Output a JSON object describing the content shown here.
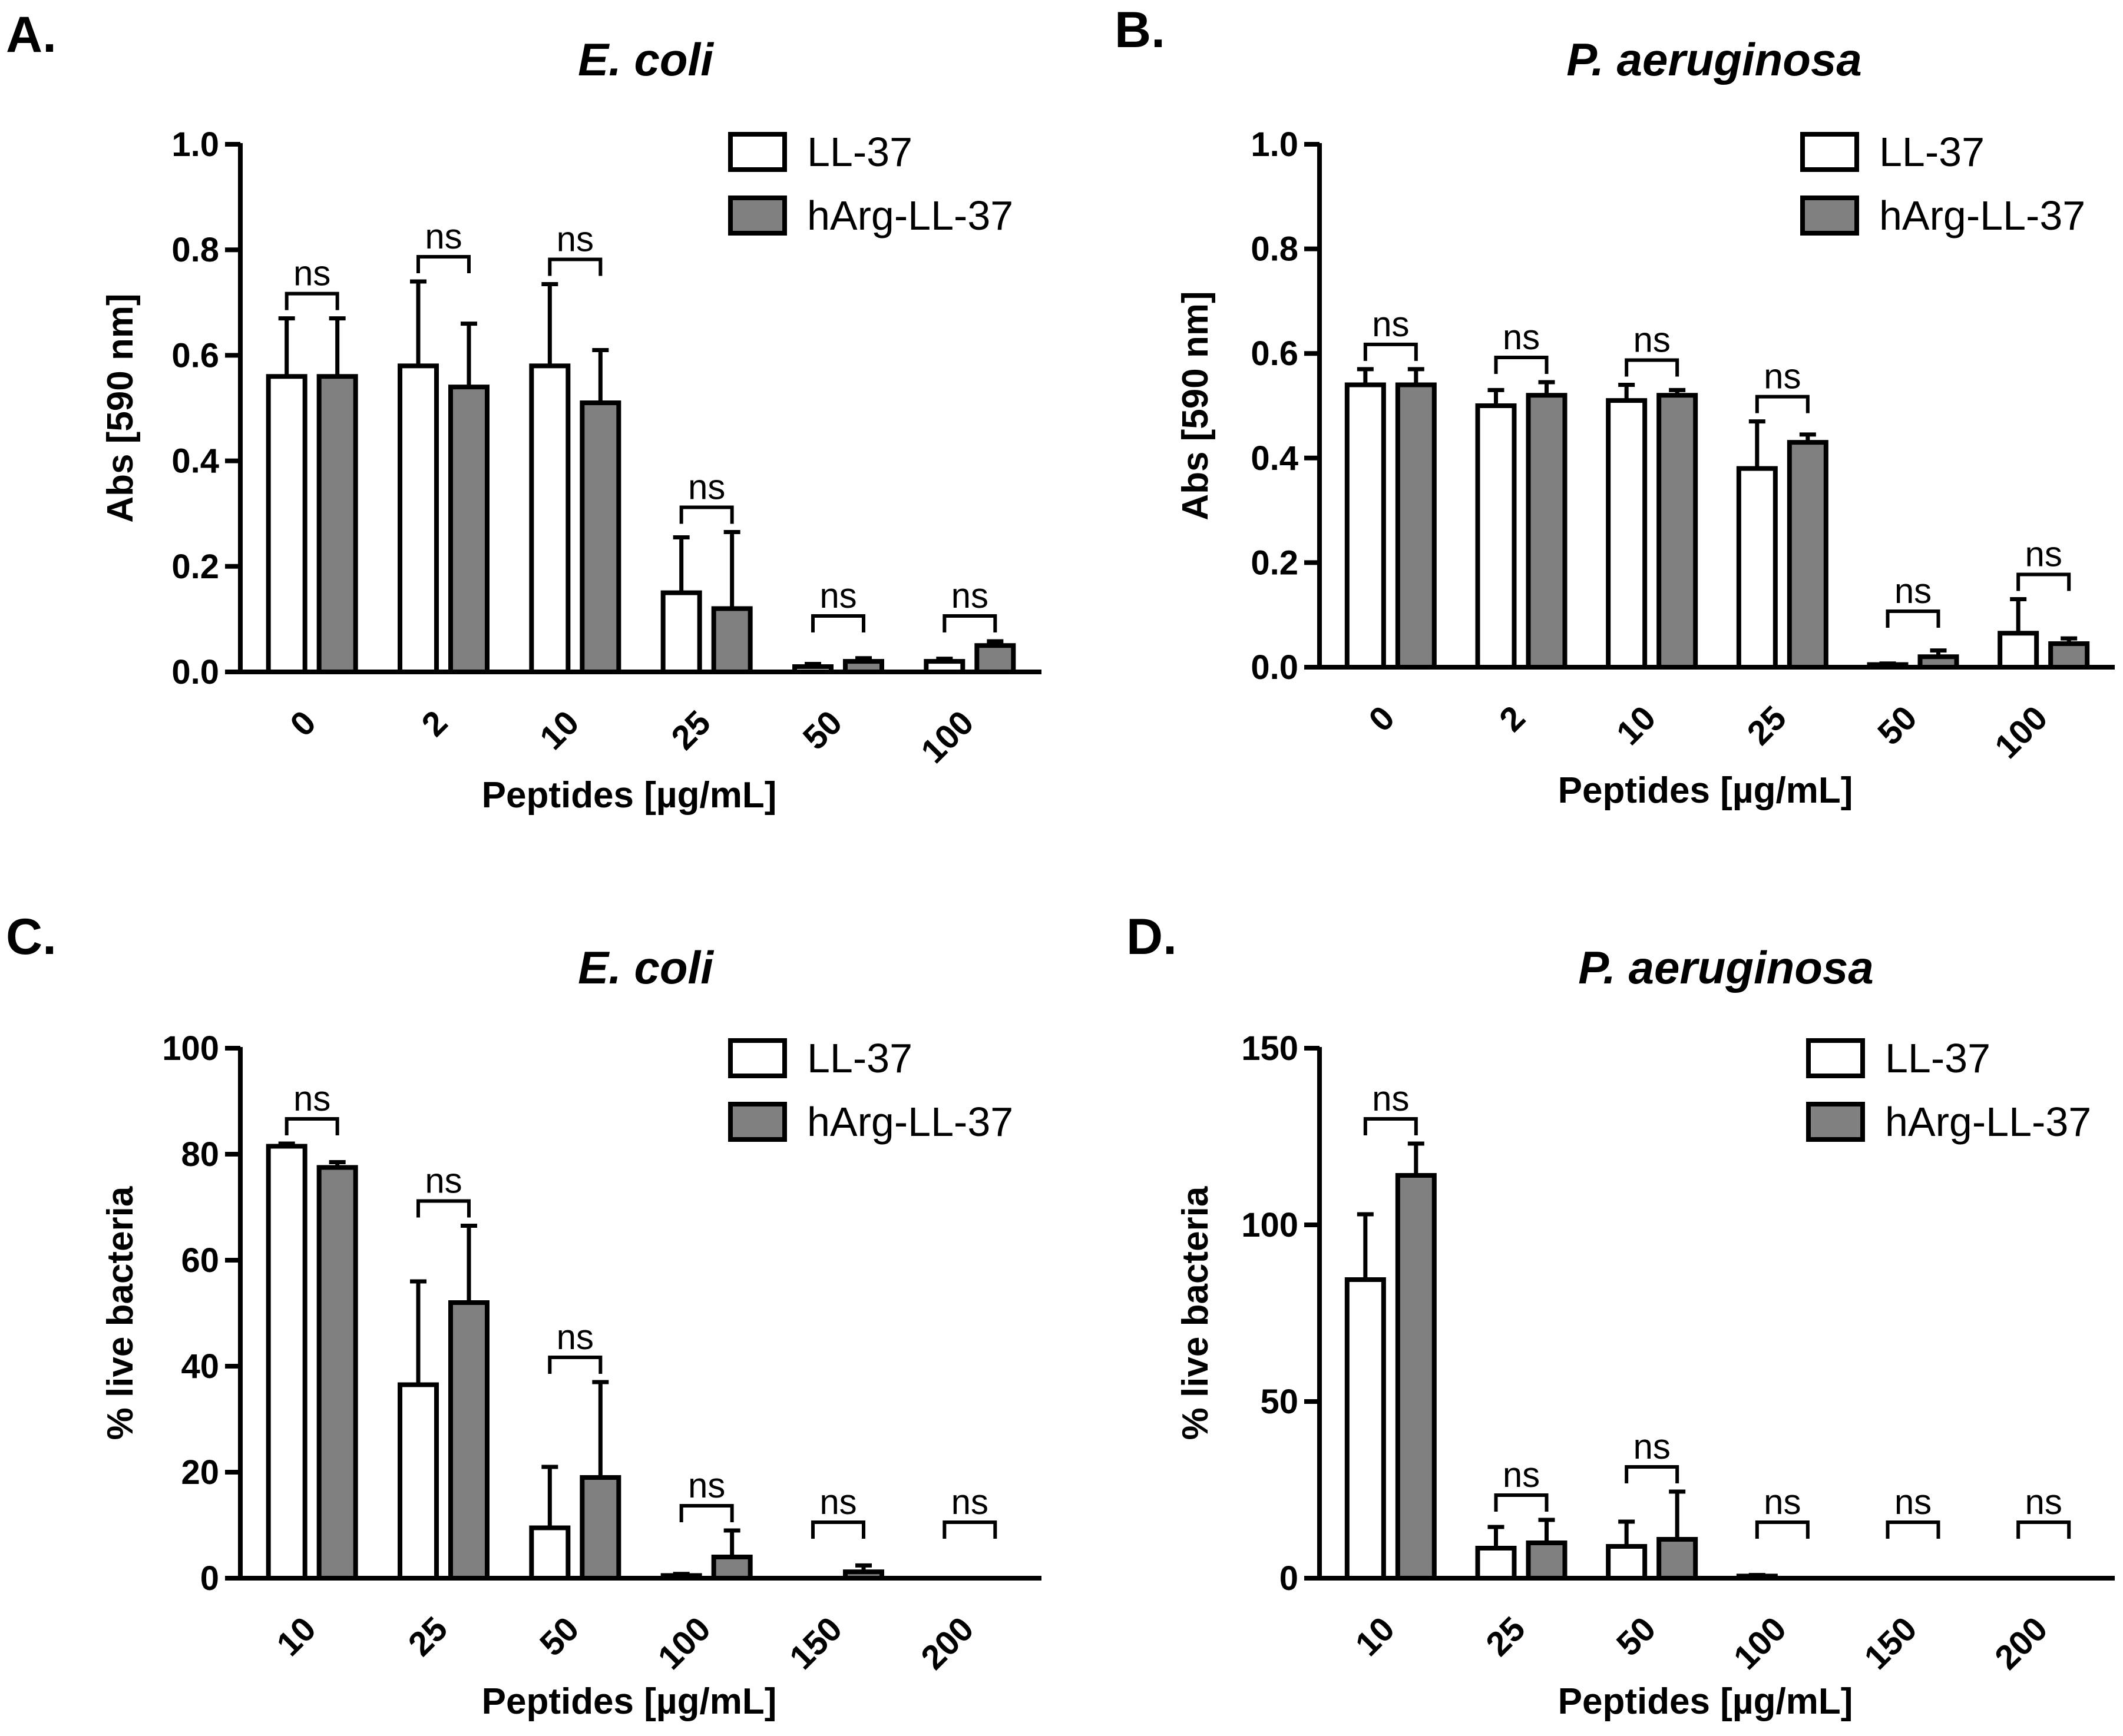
{
  "legend_labels": [
    "LL-37",
    "hArg-LL-37"
  ],
  "colors": {
    "series_a": "#ffffff",
    "series_b": "#808080",
    "stroke": "#000000"
  },
  "chart_data": [
    {
      "panel": "A.",
      "type": "bar",
      "title": "E. coli",
      "xlabel": "Peptides [µg/mL]",
      "ylabel": "Abs [590 nm]",
      "ylim": [
        0,
        1.0
      ],
      "yticks": [
        "0.0",
        "0.2",
        "0.4",
        "0.6",
        "0.8",
        "1.0"
      ],
      "categories": [
        "0",
        "2",
        "10",
        "25",
        "50",
        "100"
      ],
      "series": [
        {
          "name": "LL-37",
          "values": [
            0.56,
            0.58,
            0.58,
            0.15,
            0.01,
            0.02
          ],
          "errors": [
            0.11,
            0.16,
            0.155,
            0.105,
            0.005,
            0.005
          ]
        },
        {
          "name": "hArg-LL-37",
          "values": [
            0.56,
            0.54,
            0.51,
            0.12,
            0.02,
            0.05
          ],
          "errors": [
            0.11,
            0.12,
            0.1,
            0.145,
            0.006,
            0.008
          ]
        }
      ],
      "annotations": [
        "ns",
        "ns",
        "ns",
        "ns",
        "ns",
        "ns"
      ],
      "legend_position": "top-right",
      "grid": false
    },
    {
      "panel": "B.",
      "type": "bar",
      "title": "P. aeruginosa",
      "xlabel": "Peptides [µg/mL]",
      "ylabel": "Abs [590 nm]",
      "ylim": [
        0,
        1.0
      ],
      "yticks": [
        "0.0",
        "0.2",
        "0.4",
        "0.6",
        "0.8",
        "1.0"
      ],
      "categories": [
        "0",
        "2",
        "10",
        "25",
        "50",
        "100"
      ],
      "series": [
        {
          "name": "LL-37",
          "values": [
            0.54,
            0.5,
            0.51,
            0.38,
            0.005,
            0.065
          ],
          "errors": [
            0.03,
            0.03,
            0.03,
            0.09,
            0.002,
            0.065
          ]
        },
        {
          "name": "hArg-LL-37",
          "values": [
            0.54,
            0.52,
            0.52,
            0.43,
            0.02,
            0.045
          ],
          "errors": [
            0.03,
            0.025,
            0.01,
            0.015,
            0.012,
            0.01
          ]
        }
      ],
      "annotations": [
        "ns",
        "ns",
        "ns",
        "ns",
        "ns",
        "ns"
      ],
      "legend_position": "top-right",
      "grid": false
    },
    {
      "panel": "C.",
      "type": "bar",
      "title": "E. coli",
      "xlabel": "Peptides [µg/mL]",
      "ylabel": "% live bacteria",
      "ylim": [
        0,
        100
      ],
      "yticks": [
        "0",
        "20",
        "40",
        "60",
        "80",
        "100"
      ],
      "categories": [
        "10",
        "25",
        "50",
        "100",
        "150",
        "200"
      ],
      "series": [
        {
          "name": "LL-37",
          "values": [
            81.5,
            36.5,
            9.5,
            0.5,
            0,
            0
          ],
          "errors": [
            0.5,
            19.5,
            11.5,
            0.3,
            0,
            0
          ]
        },
        {
          "name": "hArg-LL-37",
          "values": [
            77.5,
            52,
            19,
            4,
            1.2,
            0
          ],
          "errors": [
            1,
            14.5,
            18,
            5,
            1.2,
            0
          ]
        }
      ],
      "annotations": [
        "ns",
        "ns",
        "ns",
        "ns",
        "ns",
        "ns"
      ],
      "legend_position": "top-right",
      "grid": false
    },
    {
      "panel": "D.",
      "type": "bar",
      "title": "P. aeruginosa",
      "xlabel": "Peptides [µg/mL]",
      "ylabel": "% live bacteria",
      "ylim": [
        0,
        150
      ],
      "yticks": [
        "0",
        "50",
        "100",
        "150"
      ],
      "categories": [
        "10",
        "25",
        "50",
        "100",
        "150",
        "200"
      ],
      "series": [
        {
          "name": "LL-37",
          "values": [
            84.5,
            8.5,
            9,
            0.6,
            0,
            0
          ],
          "errors": [
            18.5,
            6,
            7,
            0.3,
            0,
            0
          ]
        },
        {
          "name": "hArg-LL-37",
          "values": [
            114,
            10,
            11,
            0,
            0,
            0
          ],
          "errors": [
            9,
            6.5,
            13.5,
            0,
            0,
            0
          ]
        }
      ],
      "annotations": [
        "ns",
        "ns",
        "ns",
        "ns",
        "ns",
        "ns"
      ],
      "legend_position": "top-right",
      "grid": false
    }
  ]
}
